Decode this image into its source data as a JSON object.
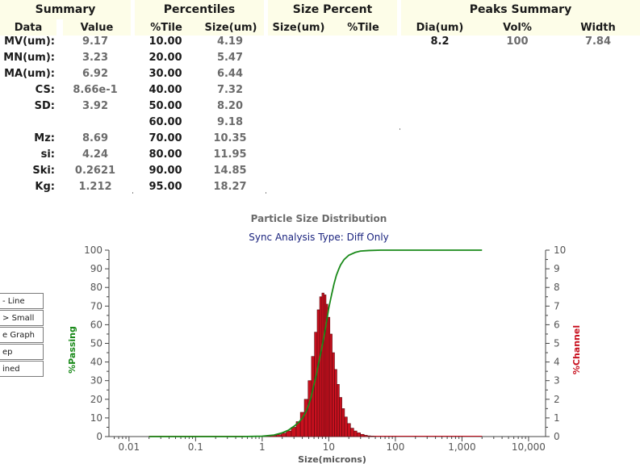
{
  "summary": {
    "title": "Summary",
    "col_data": "Data",
    "col_value": "Value",
    "rows": [
      {
        "label": "MV(um):",
        "value": "9.17"
      },
      {
        "label": "MN(um):",
        "value": "3.23"
      },
      {
        "label": "MA(um):",
        "value": "6.92"
      },
      {
        "label": "CS:",
        "value": "8.66e-1"
      },
      {
        "label": "SD:",
        "value": "3.92"
      },
      {
        "label": "",
        "value": ""
      },
      {
        "label": "Mz:",
        "value": "8.69"
      },
      {
        "label": "si:",
        "value": "4.24"
      },
      {
        "label": "Ski:",
        "value": "0.2621"
      },
      {
        "label": "Kg:",
        "value": "1.212"
      }
    ]
  },
  "percentiles": {
    "title": "Percentiles",
    "col_tile": "%Tile",
    "col_size": "Size(um)",
    "rows": [
      {
        "tile": "10.00",
        "size": "4.19"
      },
      {
        "tile": "20.00",
        "size": "5.47"
      },
      {
        "tile": "30.00",
        "size": "6.44"
      },
      {
        "tile": "40.00",
        "size": "7.32"
      },
      {
        "tile": "50.00",
        "size": "8.20"
      },
      {
        "tile": "60.00",
        "size": "9.18"
      },
      {
        "tile": "70.00",
        "size": "10.35"
      },
      {
        "tile": "80.00",
        "size": "11.95"
      },
      {
        "tile": "90.00",
        "size": "14.85"
      },
      {
        "tile": "95.00",
        "size": "18.27"
      }
    ]
  },
  "size_percent": {
    "title": "Size Percent",
    "col_size": "Size(um)",
    "col_tile": "%Tile"
  },
  "peaks": {
    "title": "Peaks Summary",
    "col_dia": "Dia(um)",
    "col_vol": "Vol%",
    "col_width": "Width",
    "rows": [
      {
        "dia": "8.2",
        "vol": "100",
        "width": "7.84"
      }
    ]
  },
  "options": [
    {
      "label": "Line",
      "prefix": "-"
    },
    {
      "label": "Small",
      "prefix": ">"
    },
    {
      "label": "Graph",
      "prefix": "e"
    },
    {
      "label": "ep",
      "prefix": ""
    },
    {
      "label": "ined",
      "prefix": ""
    }
  ],
  "colors": {
    "passing": "#1a8a1a",
    "channel_fill": "#c8101e",
    "channel_edge": "#5a0a10",
    "subtitle": "#1a237e",
    "band": "#fdfde8"
  },
  "chart_data": {
    "type": "bar",
    "title": "Particle Size Distribution",
    "subtitle": "Sync Analysis Type: Diff Only",
    "xlabel": "Size(microns)",
    "ylabel_left": "%Passing",
    "ylabel_right": "%Channel",
    "x_scale": "log",
    "xlim": [
      0.005,
      18000
    ],
    "ylim_left": [
      0,
      100
    ],
    "ylim_right": [
      0,
      10
    ],
    "x_ticks": [
      "0.01",
      "0.1",
      "1",
      "10",
      "100",
      "1,000",
      "10,000"
    ],
    "x_tick_values": [
      0.01,
      0.1,
      1,
      10,
      100,
      1000,
      10000
    ],
    "y_ticks_left": [
      "0",
      "10",
      "20",
      "30",
      "40",
      "50",
      "60",
      "70",
      "80",
      "90",
      "100"
    ],
    "y_ticks_right": [
      "0",
      "1",
      "2",
      "3",
      "4",
      "5",
      "6",
      "7",
      "8",
      "9",
      "10"
    ],
    "channel_series": {
      "name": "%Channel",
      "x": [
        1.2,
        1.5,
        1.8,
        2.1,
        2.5,
        3.0,
        3.5,
        4.0,
        4.6,
        5.2,
        5.8,
        6.4,
        7.0,
        7.6,
        8.2,
        8.8,
        9.4,
        10.0,
        10.8,
        11.7,
        12.7,
        13.8,
        15.0,
        16.5,
        18.0,
        20.0,
        22.5,
        25.0,
        28.0,
        32.0,
        36.0,
        40.0,
        45.0
      ],
      "values": [
        0.03,
        0.06,
        0.1,
        0.18,
        0.3,
        0.5,
        0.8,
        1.3,
        2.0,
        3.0,
        4.3,
        5.6,
        6.8,
        7.5,
        7.7,
        7.6,
        7.1,
        6.4,
        5.5,
        4.5,
        3.6,
        2.8,
        2.1,
        1.5,
        1.05,
        0.7,
        0.45,
        0.3,
        0.2,
        0.12,
        0.07,
        0.04,
        0.02
      ]
    },
    "passing_series": {
      "name": "%Passing",
      "x": [
        0.02,
        0.5,
        1.0,
        1.5,
        2.0,
        2.5,
        3.0,
        3.5,
        4.0,
        4.5,
        5.0,
        5.5,
        6.0,
        6.5,
        7.0,
        7.5,
        8.0,
        8.5,
        9.0,
        9.5,
        10.0,
        11.0,
        12.0,
        13.0,
        14.0,
        15.0,
        17.0,
        20.0,
        25.0,
        30.0,
        40.0,
        60.0,
        100.0,
        2000.0
      ],
      "values": [
        0,
        0,
        0.2,
        0.8,
        2.0,
        3.5,
        5.5,
        7.5,
        9.8,
        13.0,
        17.0,
        22.0,
        28.0,
        33.0,
        39.0,
        44.0,
        49.0,
        54.0,
        59.0,
        64.0,
        69.0,
        76.0,
        82.0,
        86.5,
        89.5,
        92.0,
        95.0,
        97.3,
        98.8,
        99.5,
        99.8,
        100,
        100,
        100
      ]
    }
  }
}
